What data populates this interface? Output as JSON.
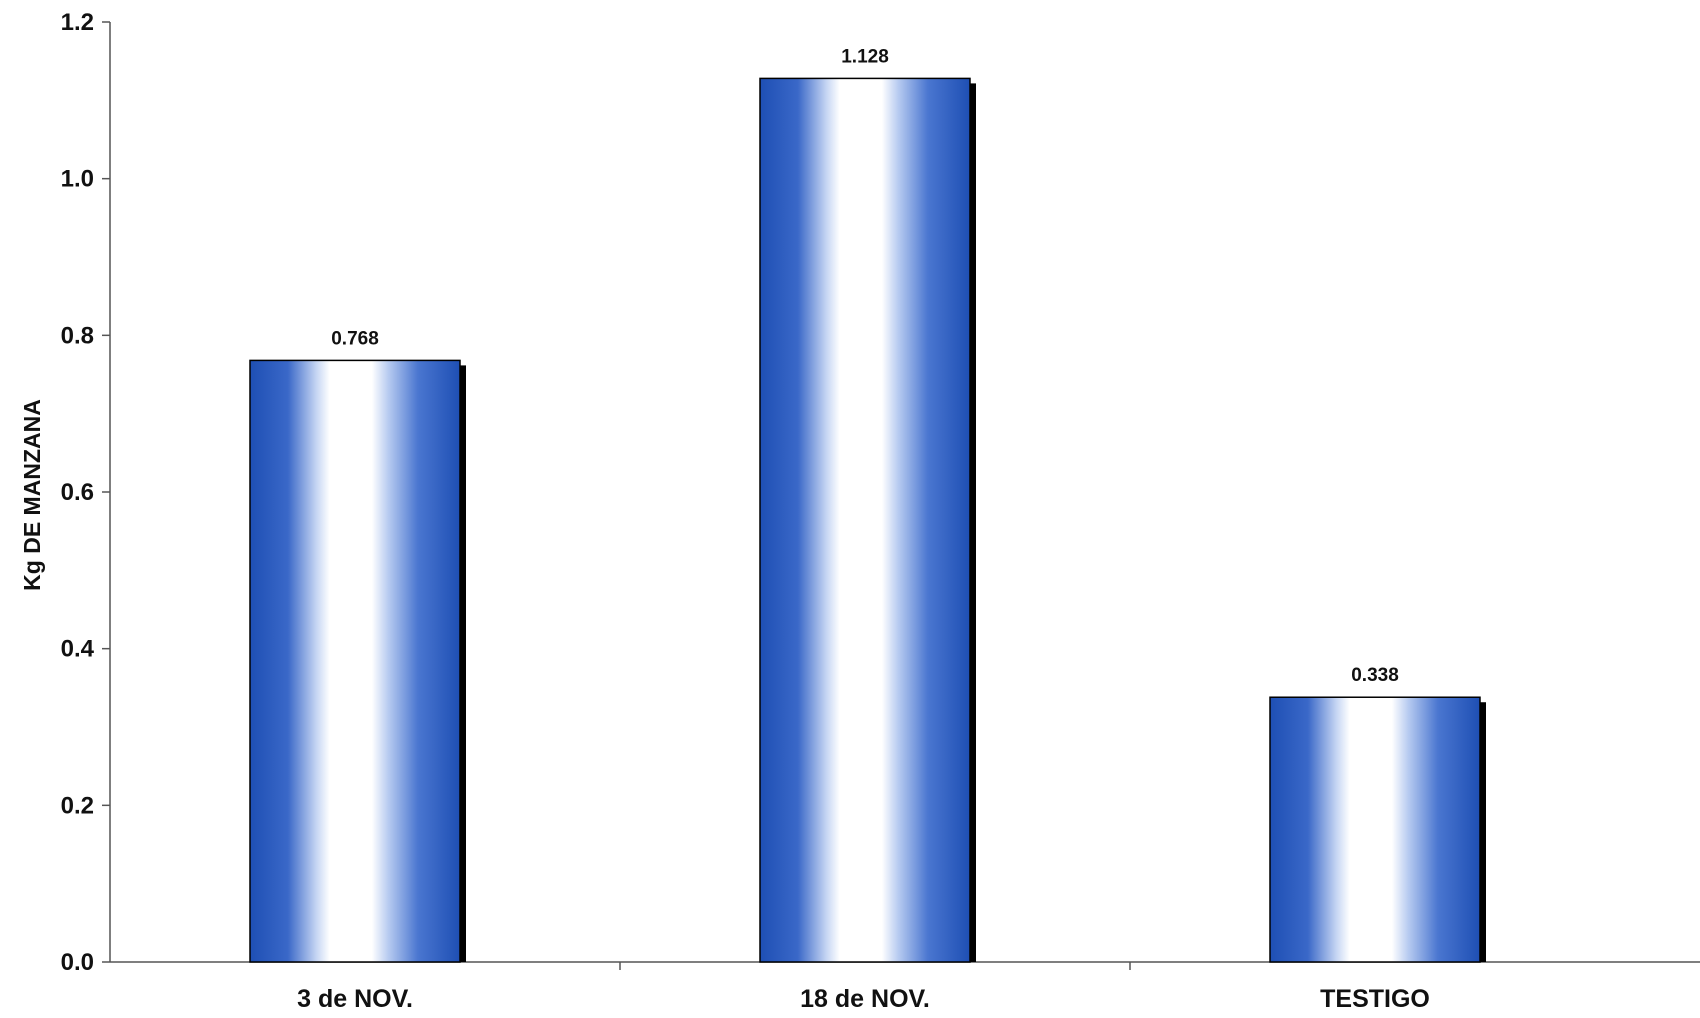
{
  "chart_data": {
    "type": "bar",
    "title": "",
    "xlabel": "",
    "ylabel": "Kg DE MANZANA",
    "categories": [
      "3 de NOV.",
      "18 de NOV.",
      "TESTIGO"
    ],
    "values": [
      0.768,
      1.128,
      0.338
    ],
    "data_labels": [
      "0.768",
      "1.128",
      "0.338"
    ],
    "ylim": [
      0,
      1.2
    ],
    "yticks": [
      0.0,
      0.2,
      0.4,
      0.6,
      0.8,
      1.0,
      1.2
    ],
    "ytick_labels": [
      "0.0",
      "0.2",
      "0.4",
      "0.6",
      "0.8",
      "1.0",
      "1.2"
    ],
    "grid": false,
    "legend": "none",
    "colors": {
      "bar_dark": "#1e4fb4",
      "bar_mid": "#5f8ad8",
      "bar_light": "#ffffff",
      "bar_shadow": "#000000",
      "axis": "#555555",
      "text": "#111111"
    }
  }
}
